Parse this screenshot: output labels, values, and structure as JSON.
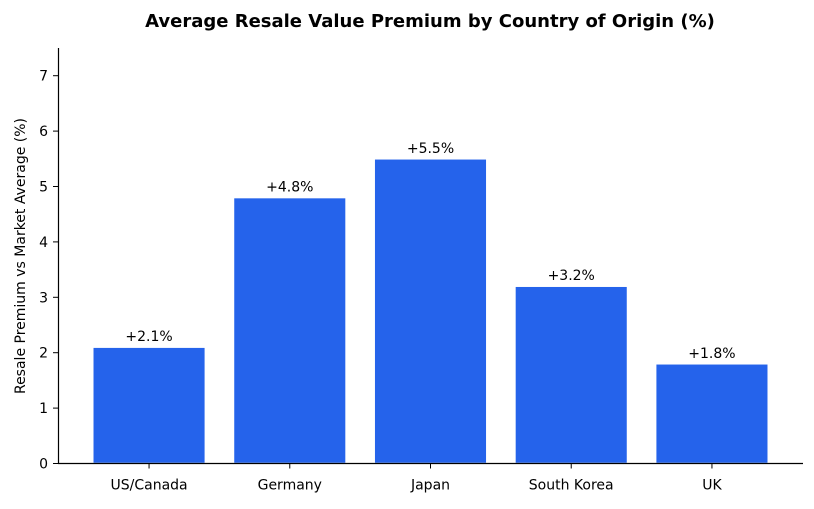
{
  "chart_data": {
    "type": "bar",
    "title": "Average Resale Value Premium by Country of Origin (%)",
    "xlabel": "",
    "ylabel": "Resale Premium vs Market Average (%)",
    "categories": [
      "US/Canada",
      "Germany",
      "Japan",
      "South Korea",
      "UK"
    ],
    "values": [
      2.1,
      4.8,
      5.5,
      3.2,
      1.8
    ],
    "data_labels": [
      "+2.1%",
      "+4.8%",
      "+5.5%",
      "+3.2%",
      "+1.8%"
    ],
    "ylim": [
      0,
      7.5
    ],
    "yticks": [
      0,
      1,
      2,
      3,
      4,
      5,
      6,
      7
    ],
    "grid": false,
    "legend": "none",
    "bar_color": "#2563eb"
  }
}
